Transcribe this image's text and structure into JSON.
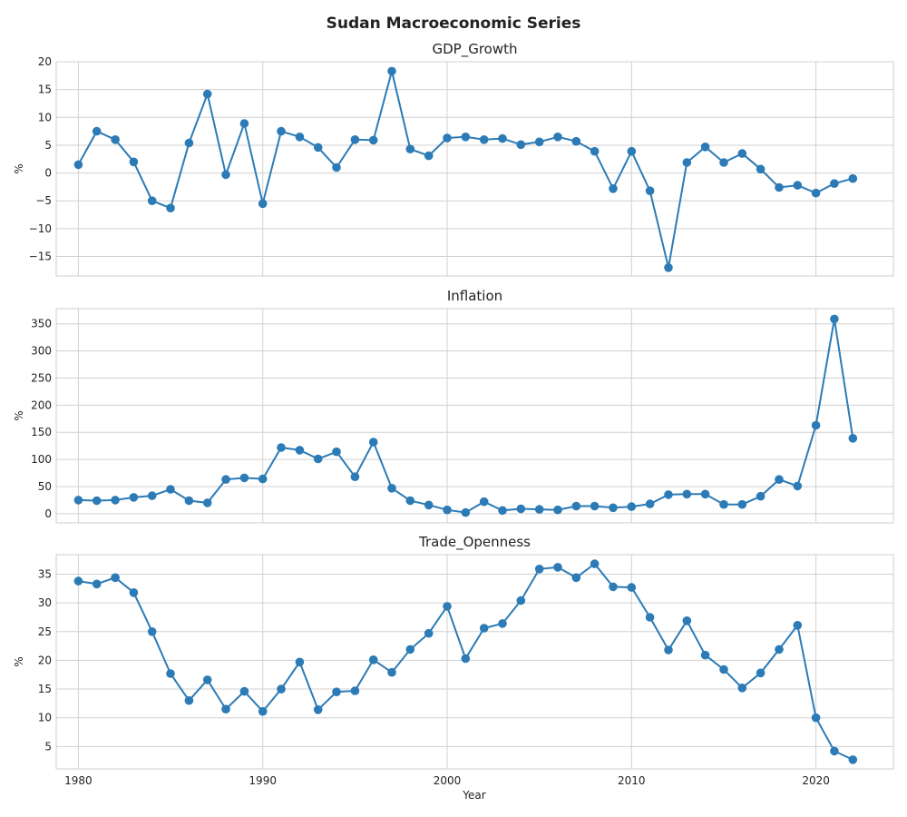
{
  "suptitle": "Sudan Macroeconomic Series",
  "xlabel": "Year",
  "chart_data": [
    {
      "type": "line",
      "title": "GDP_Growth",
      "ylabel": "%",
      "xlim": [
        1978.8,
        2024.2
      ],
      "ylim": [
        -18.5,
        20
      ],
      "x_ticks": [
        1980,
        1990,
        2000,
        2010,
        2020
      ],
      "y_ticks": [
        -15,
        -10,
        -5,
        0,
        5,
        10,
        15,
        20
      ],
      "grid": true,
      "color": "#2c7bb6",
      "x": [
        1980,
        1981,
        1982,
        1983,
        1984,
        1985,
        1986,
        1987,
        1988,
        1989,
        1990,
        1991,
        1992,
        1993,
        1994,
        1995,
        1996,
        1997,
        1998,
        1999,
        2000,
        2001,
        2002,
        2003,
        2004,
        2005,
        2006,
        2007,
        2008,
        2009,
        2010,
        2011,
        2012,
        2013,
        2014,
        2015,
        2016,
        2017,
        2018,
        2019,
        2020,
        2021,
        2022
      ],
      "values": [
        1.5,
        7.5,
        6.0,
        2.0,
        -5.0,
        -6.3,
        5.4,
        14.2,
        -0.3,
        8.9,
        -5.5,
        7.5,
        6.5,
        4.6,
        1.0,
        6.0,
        5.9,
        18.3,
        4.3,
        3.1,
        6.3,
        6.5,
        6.0,
        6.2,
        5.1,
        5.6,
        6.5,
        5.7,
        3.9,
        -2.8,
        3.9,
        -3.2,
        -17.0,
        1.9,
        4.7,
        1.9,
        3.5,
        0.7,
        -2.6,
        -2.2,
        -3.6,
        -1.9,
        -1.0
      ]
    },
    {
      "type": "line",
      "title": "Inflation",
      "ylabel": "%",
      "xlim": [
        1978.8,
        2024.2
      ],
      "ylim": [
        -17,
        378
      ],
      "x_ticks": [
        1980,
        1990,
        2000,
        2010,
        2020
      ],
      "y_ticks": [
        0,
        50,
        100,
        150,
        200,
        250,
        300,
        350
      ],
      "grid": true,
      "color": "#2c7bb6",
      "x": [
        1980,
        1981,
        1982,
        1983,
        1984,
        1985,
        1986,
        1987,
        1988,
        1989,
        1990,
        1991,
        1992,
        1993,
        1994,
        1995,
        1996,
        1997,
        1998,
        1999,
        2000,
        2001,
        2002,
        2003,
        2004,
        2005,
        2006,
        2007,
        2008,
        2009,
        2010,
        2011,
        2012,
        2013,
        2014,
        2015,
        2016,
        2017,
        2018,
        2019,
        2020,
        2021,
        2022
      ],
      "values": [
        25,
        24,
        25,
        30,
        33,
        45,
        24,
        20,
        63,
        66,
        64,
        122,
        117,
        101,
        114,
        68,
        132,
        47,
        24,
        16,
        7,
        2,
        22,
        6,
        9,
        8,
        7,
        14,
        14,
        11,
        13,
        18,
        35,
        36,
        36,
        17,
        17,
        32,
        63,
        51,
        163,
        359,
        139
      ]
    },
    {
      "type": "line",
      "title": "Trade_Openness",
      "ylabel": "%",
      "xlim": [
        1978.8,
        2024.2
      ],
      "ylim": [
        1.1,
        38.4
      ],
      "x_ticks": [
        1980,
        1990,
        2000,
        2010,
        2020
      ],
      "y_ticks": [
        5,
        10,
        15,
        20,
        25,
        30,
        35
      ],
      "grid": true,
      "color": "#2c7bb6",
      "x": [
        1980,
        1981,
        1982,
        1983,
        1984,
        1985,
        1986,
        1987,
        1988,
        1989,
        1990,
        1991,
        1992,
        1993,
        1994,
        1995,
        1996,
        1997,
        1998,
        1999,
        2000,
        2001,
        2002,
        2003,
        2004,
        2005,
        2006,
        2007,
        2008,
        2009,
        2010,
        2011,
        2012,
        2013,
        2014,
        2015,
        2016,
        2017,
        2018,
        2019,
        2020,
        2021,
        2022
      ],
      "values": [
        33.8,
        33.3,
        34.4,
        31.8,
        25.0,
        17.7,
        13.0,
        16.6,
        11.5,
        14.6,
        11.1,
        15.0,
        19.7,
        11.4,
        14.5,
        14.7,
        20.1,
        17.9,
        21.9,
        24.7,
        29.4,
        20.3,
        25.6,
        26.4,
        30.4,
        35.9,
        36.2,
        34.4,
        36.8,
        32.8,
        32.7,
        27.5,
        21.8,
        26.9,
        20.9,
        18.4,
        15.2,
        17.8,
        21.9,
        26.1,
        10.0,
        4.2,
        2.7
      ]
    }
  ]
}
